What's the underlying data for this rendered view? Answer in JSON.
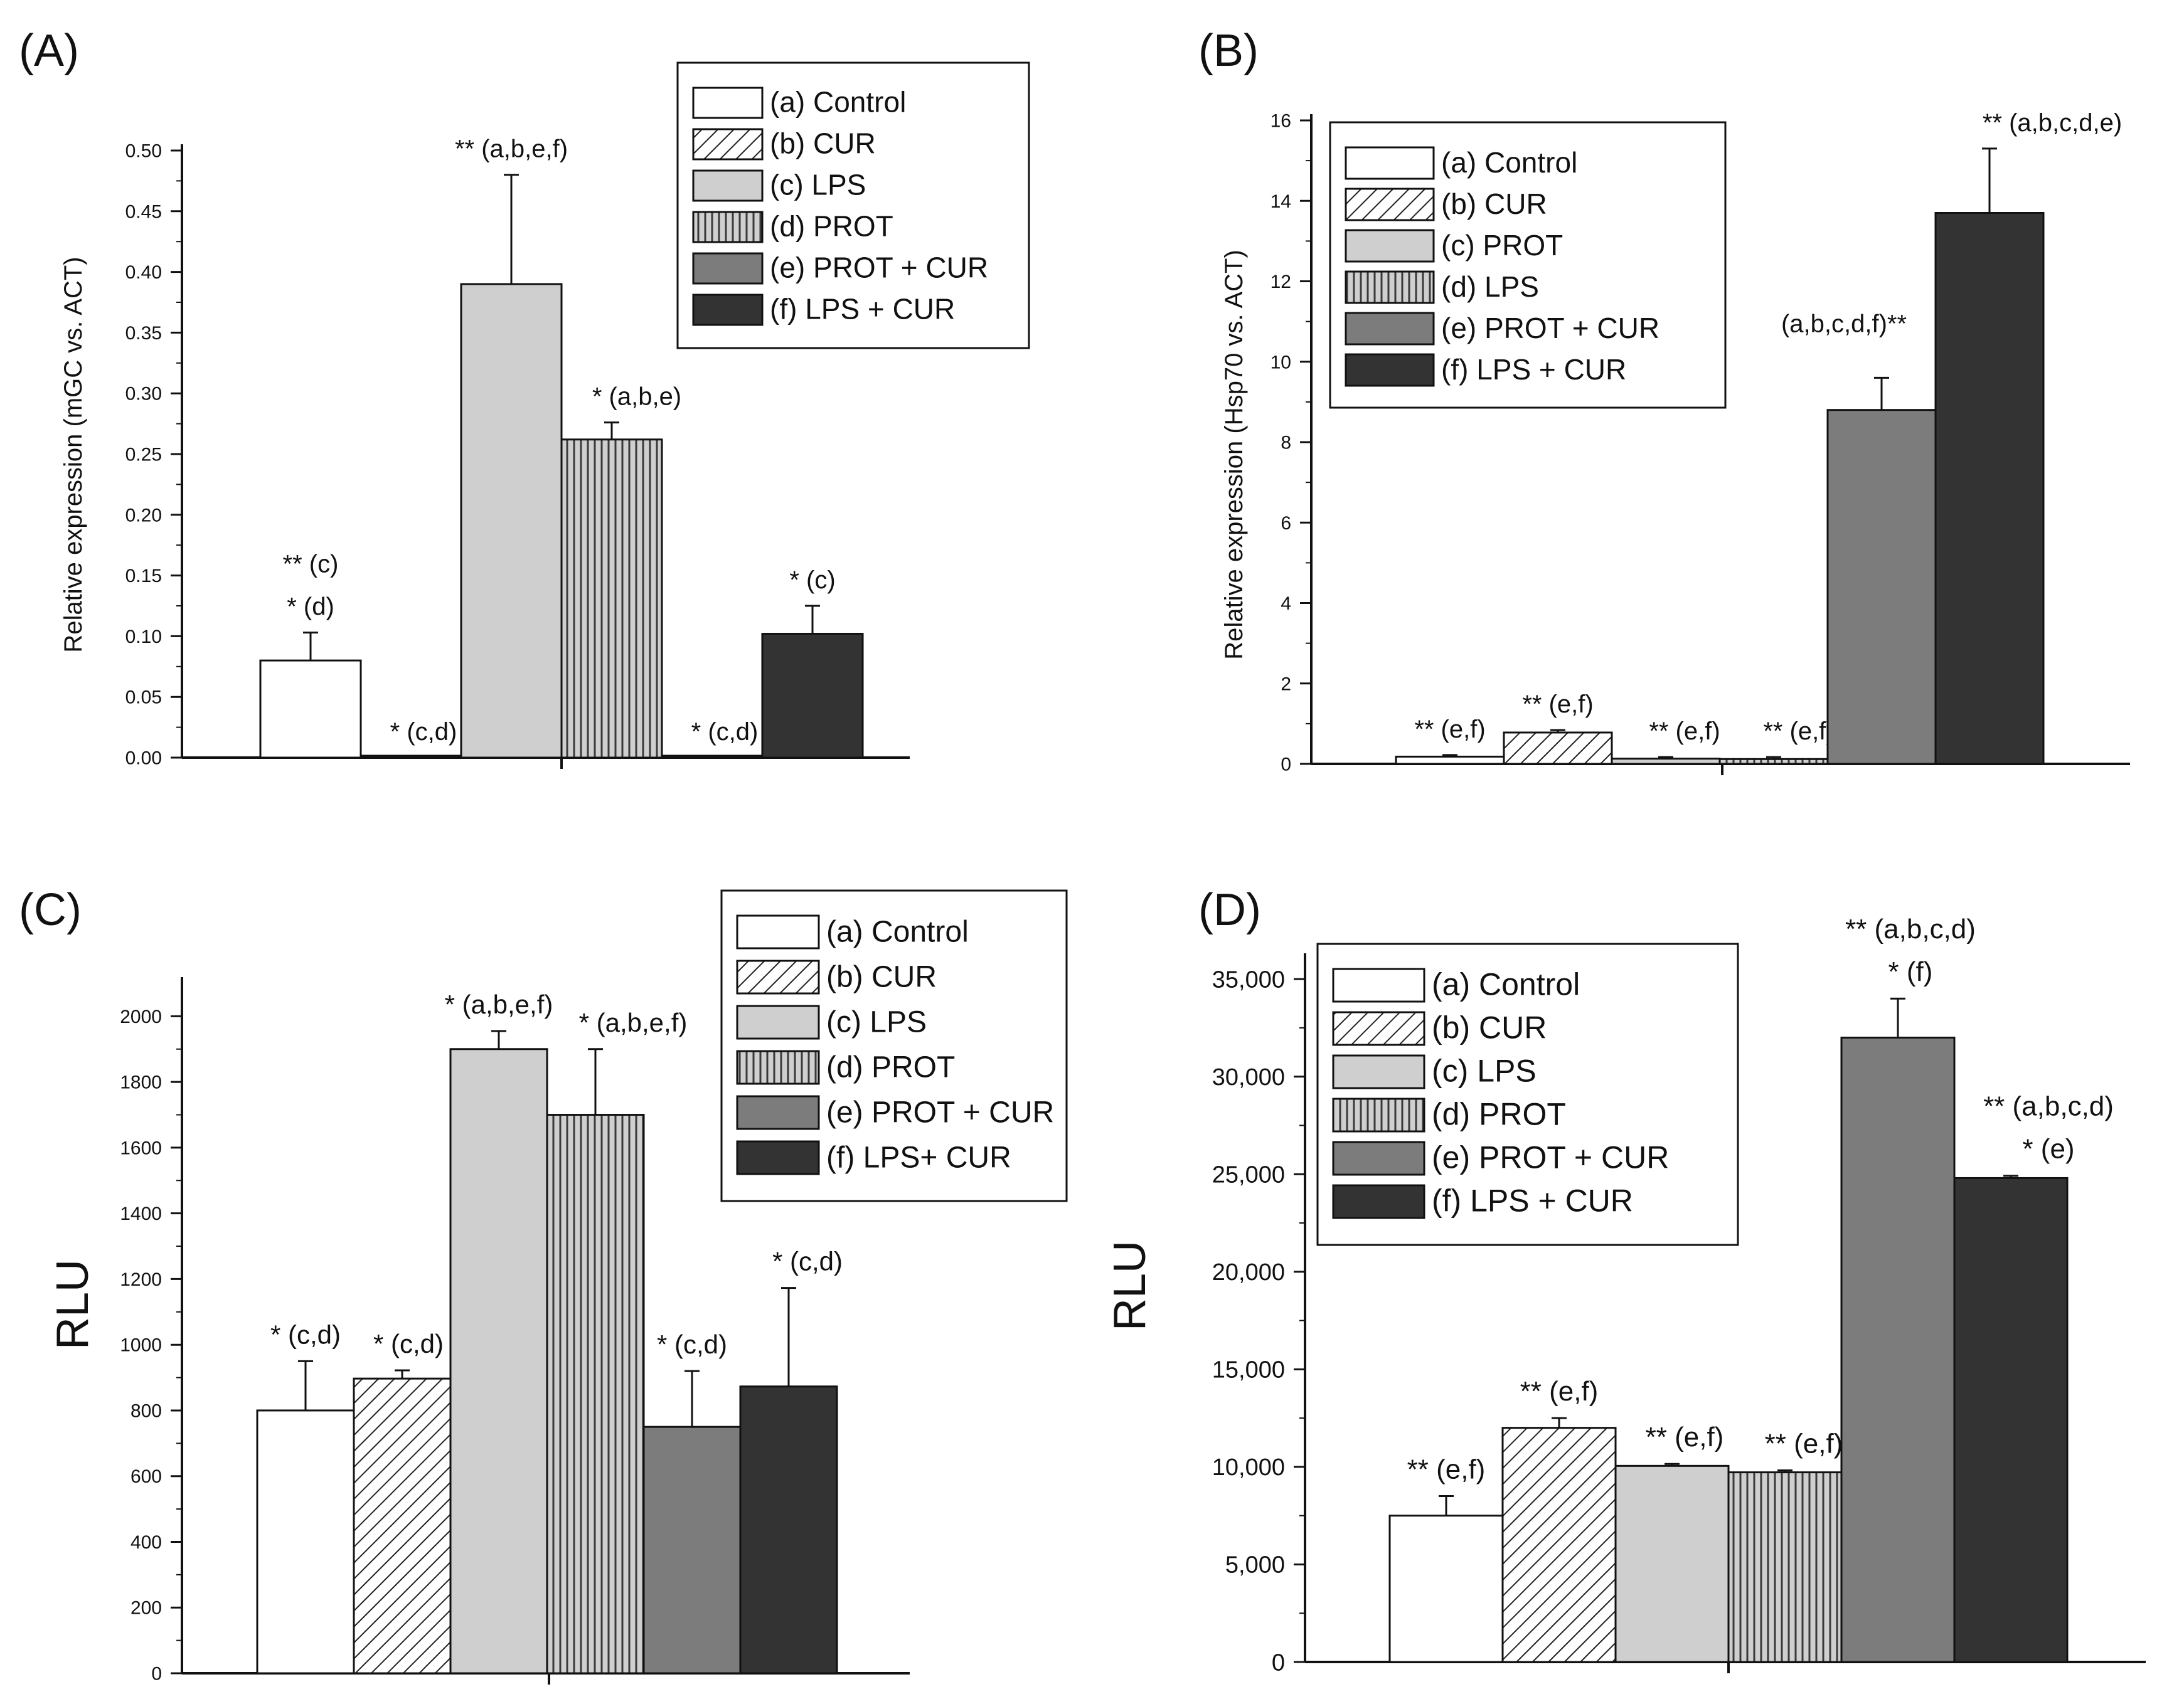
{
  "figure": {
    "panel_count": 4
  },
  "colors": {
    "a": "#ffffff",
    "b": "#ffffff",
    "c": "#cfcfcf",
    "d": "#bdbdbd",
    "e": "#7c7c7c",
    "f": "#333333",
    "stroke": "#111111"
  },
  "chart_data": [
    {
      "panel": "(A)",
      "type": "bar",
      "title": "",
      "xlabel": "",
      "ylabel": "Relative expression (mGC vs. ACT)",
      "ylim": [
        0,
        0.5
      ],
      "yticks": [
        0,
        0.05,
        0.1,
        0.15,
        0.2,
        0.25,
        0.3,
        0.35,
        0.4,
        0.45,
        0.5
      ],
      "yticklabels": [
        "0.00",
        "0.05",
        "0.10",
        "0.15",
        "0.20",
        "0.25",
        "0.30",
        "0.35",
        "0.40",
        "0.45",
        "0.50"
      ],
      "legend_position": "top-right",
      "bars": [
        {
          "key": "a",
          "legend": "(a) Control",
          "pattern": "white",
          "value": 0.08,
          "error": 0.023,
          "annotation": [
            "** (c)",
            "* (d)"
          ]
        },
        {
          "key": "b",
          "legend": "(b) CUR",
          "pattern": "diag",
          "value": 0.0,
          "error": 0.0,
          "annotation": [
            "* (c,d)"
          ]
        },
        {
          "key": "c",
          "legend": "(c) LPS",
          "pattern": "lightgray",
          "value": 0.39,
          "error": 0.09,
          "annotation": [
            "** (a,b,e,f)"
          ]
        },
        {
          "key": "d",
          "legend": "(d) PROT",
          "pattern": "vert",
          "value": 0.262,
          "error": 0.014,
          "annotation": [
            "* (a,b,e)"
          ]
        },
        {
          "key": "e",
          "legend": "(e) PROT + CUR",
          "pattern": "midgray",
          "value": 0.0,
          "error": 0.0,
          "annotation": [
            "* (c,d)"
          ]
        },
        {
          "key": "f",
          "legend": "(f) LPS + CUR",
          "pattern": "dark",
          "value": 0.102,
          "error": 0.023,
          "annotation": [
            "* (c)"
          ]
        }
      ]
    },
    {
      "panel": "(B)",
      "type": "bar",
      "title": "",
      "xlabel": "",
      "ylabel": "Relative expression (Hsp70 vs. ACT)",
      "ylim": [
        0,
        16
      ],
      "yticks": [
        0,
        2,
        4,
        6,
        8,
        10,
        12,
        14,
        16
      ],
      "yticklabels": [
        "0",
        "2",
        "4",
        "6",
        "8",
        "10",
        "12",
        "14",
        "16"
      ],
      "legend_position": "top-left",
      "bars": [
        {
          "key": "a",
          "legend": "(a) Control",
          "pattern": "white",
          "value": 0.18,
          "error": 0.04,
          "annotation": [
            "** (e,f)"
          ]
        },
        {
          "key": "b",
          "legend": "(b) CUR",
          "pattern": "diag",
          "value": 0.78,
          "error": 0.06,
          "annotation": [
            "** (e,f)"
          ]
        },
        {
          "key": "c",
          "legend": "(c) PROT",
          "pattern": "lightgray",
          "value": 0.13,
          "error": 0.04,
          "annotation": [
            "** (e,f)"
          ]
        },
        {
          "key": "d",
          "legend": "(d) LPS",
          "pattern": "vert",
          "value": 0.12,
          "error": 0.05,
          "annotation": [
            "** (e,f)"
          ]
        },
        {
          "key": "e",
          "legend": "(e) PROT + CUR",
          "pattern": "midgray",
          "value": 8.8,
          "error": 0.8,
          "annotation": [
            "(a,b,c,d,f)**"
          ]
        },
        {
          "key": "f",
          "legend": "(f) LPS + CUR",
          "pattern": "dark",
          "value": 13.7,
          "error": 1.6,
          "annotation": [
            "** (a,b,c,d,e)"
          ]
        }
      ]
    },
    {
      "panel": "(C)",
      "type": "bar",
      "title": "",
      "xlabel": "",
      "ylabel": "RLU",
      "ylim": [
        0,
        2100
      ],
      "yticks": [
        0,
        200,
        400,
        600,
        800,
        1000,
        1200,
        1400,
        1600,
        1800,
        2000
      ],
      "yticklabels": [
        "0",
        "200",
        "400",
        "600",
        "800",
        "1000",
        "1200",
        "1400",
        "1600",
        "1800",
        "2000"
      ],
      "legend_position": "top-right",
      "bars": [
        {
          "key": "a",
          "legend": "(a) Control",
          "pattern": "white",
          "value": 800,
          "error": 150,
          "annotation": [
            "* (c,d)"
          ]
        },
        {
          "key": "b",
          "legend": "(b) CUR",
          "pattern": "diag",
          "value": 897,
          "error": 25,
          "annotation": [
            "* (c,d)"
          ]
        },
        {
          "key": "c",
          "legend": "(c) LPS",
          "pattern": "lightgray",
          "value": 1900,
          "error": 55,
          "annotation": [
            "* (a,b,e,f)"
          ]
        },
        {
          "key": "d",
          "legend": "(d) PROT",
          "pattern": "vert",
          "value": 1700,
          "error": 200,
          "annotation": [
            "* (a,b,e,f)"
          ]
        },
        {
          "key": "e",
          "legend": "(e) PROT + CUR",
          "pattern": "midgray",
          "value": 750,
          "error": 170,
          "annotation": [
            "* (c,d)"
          ]
        },
        {
          "key": "f",
          "legend": "(f) LPS+ CUR",
          "pattern": "dark",
          "value": 873,
          "error": 300,
          "annotation": [
            "* (c,d)"
          ]
        }
      ]
    },
    {
      "panel": "(D)",
      "type": "bar",
      "title": "",
      "xlabel": "",
      "ylabel": "RLU",
      "ylim": [
        0,
        36000
      ],
      "yticks": [
        0,
        5000,
        10000,
        15000,
        20000,
        25000,
        30000,
        35000
      ],
      "yticklabels": [
        "0",
        "5,000",
        "10,000",
        "15,000",
        "20,000",
        "25,000",
        "30,000",
        "35,000"
      ],
      "legend_position": "top-left",
      "bars": [
        {
          "key": "a",
          "legend": "(a) Control",
          "pattern": "white",
          "value": 7500,
          "error": 1000,
          "annotation": [
            "** (e,f)"
          ]
        },
        {
          "key": "b",
          "legend": "(b) CUR",
          "pattern": "diag",
          "value": 12000,
          "error": 500,
          "annotation": [
            "** (e,f)"
          ]
        },
        {
          "key": "c",
          "legend": "(c) LPS",
          "pattern": "lightgray",
          "value": 10050,
          "error": 100,
          "annotation": [
            "** (e,f)"
          ]
        },
        {
          "key": "d",
          "legend": "(d) PROT",
          "pattern": "vert",
          "value": 9720,
          "error": 100,
          "annotation": [
            "** (e,f)"
          ]
        },
        {
          "key": "e",
          "legend": "(e) PROT + CUR",
          "pattern": "midgray",
          "value": 32000,
          "error": 2000,
          "annotation": [
            "** (a,b,c,d)",
            "* (f)"
          ]
        },
        {
          "key": "f",
          "legend": "(f) LPS + CUR",
          "pattern": "dark",
          "value": 24800,
          "error": 120,
          "annotation": [
            "** (a,b,c,d)",
            "* (e)"
          ]
        }
      ]
    }
  ]
}
